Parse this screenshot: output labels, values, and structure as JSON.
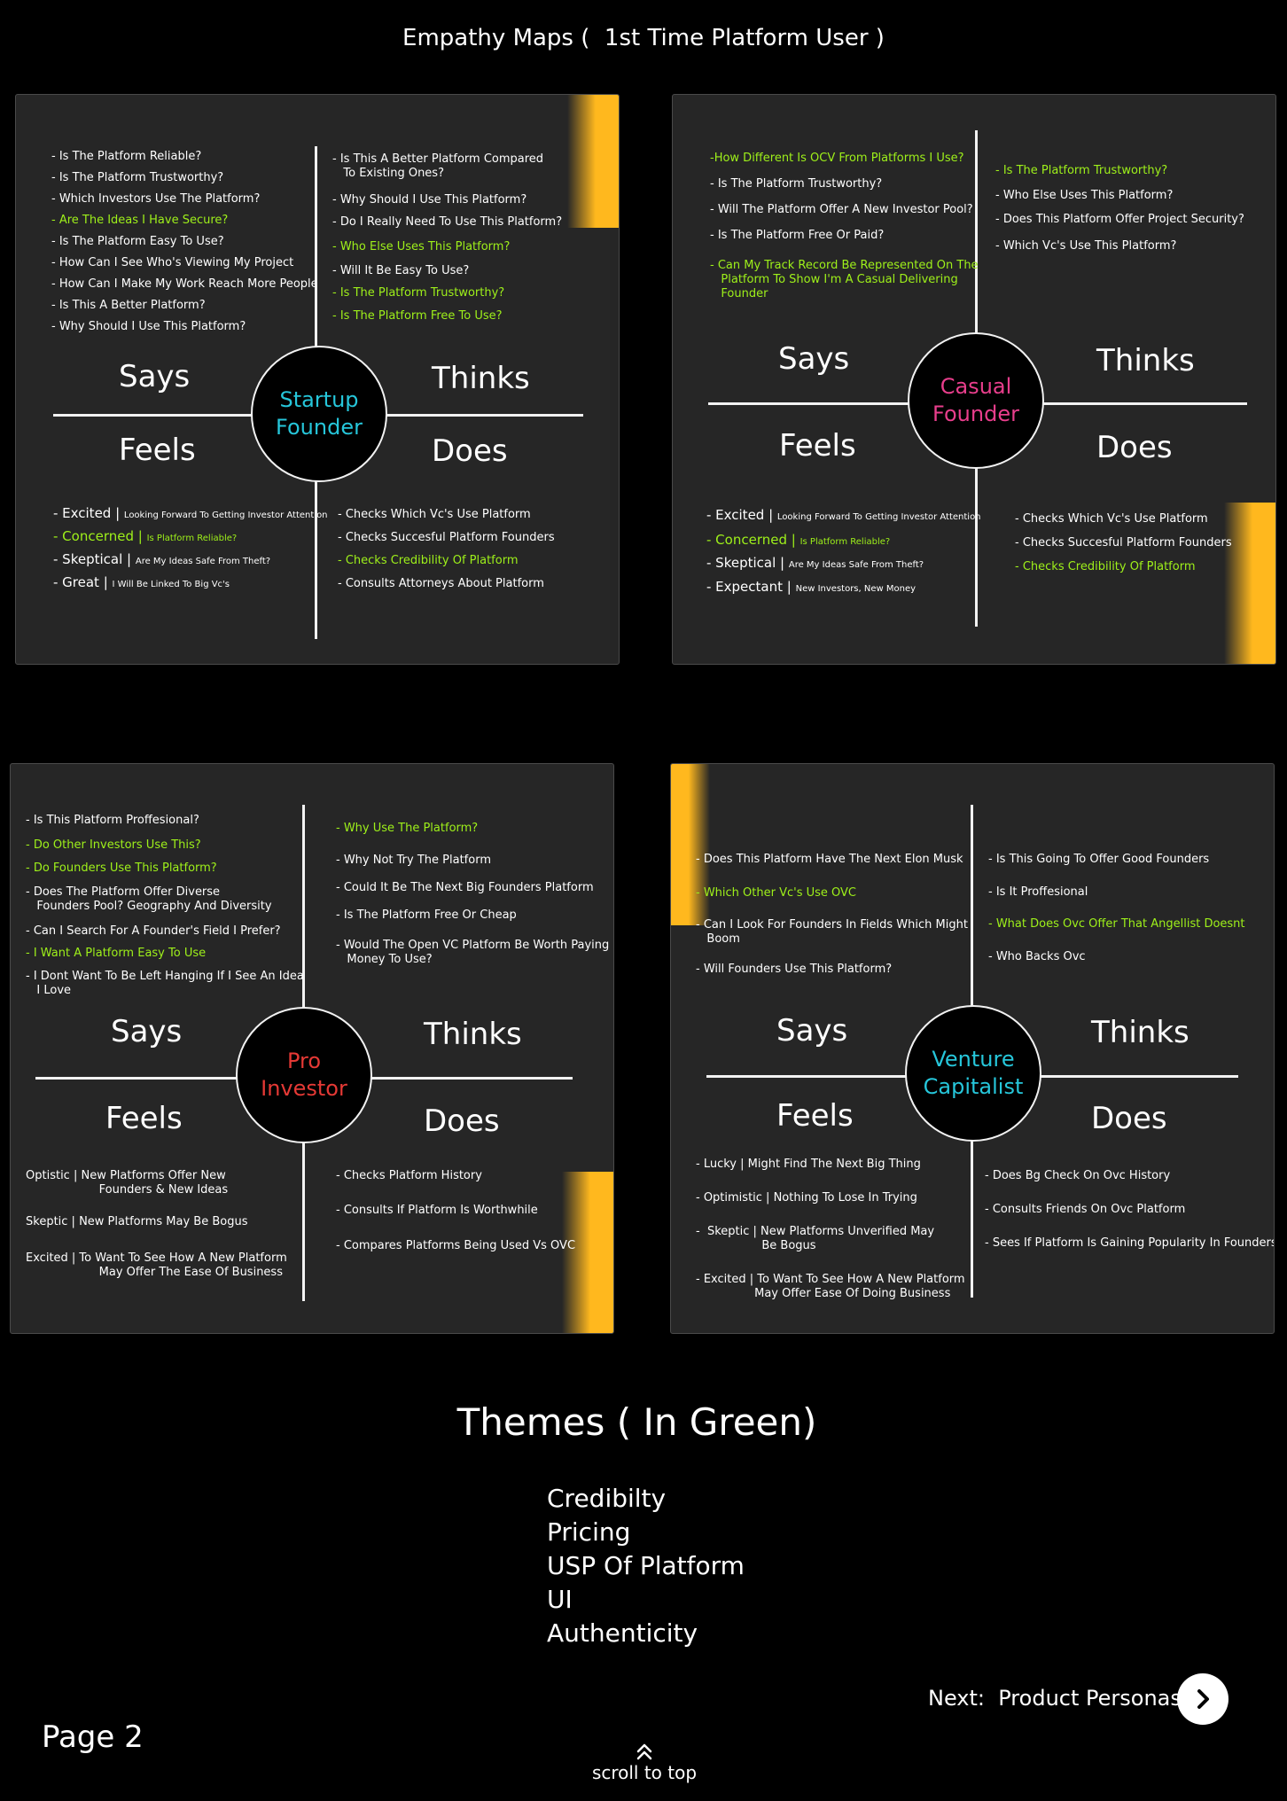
{
  "page_title": "Empathy Maps (  1st Time Platform User )",
  "colors": {
    "green": "#9ef01a",
    "accent": "#ffb81e",
    "cyan": "#26c6da",
    "pink": "#e83e8c",
    "red": "#e53935",
    "panel": "#262626"
  },
  "maps": [
    {
      "center": [
        "Startup",
        "Founder"
      ],
      "center_color": "#26c6da",
      "quadrants": {
        "says": "Says",
        "thinks": "Thinks",
        "feels": "Feels",
        "does": "Does"
      },
      "says": [
        {
          "text": "- Is The Platform Reliable?",
          "green": false
        },
        {
          "text": "- Is The Platform Trustworthy?",
          "green": false
        },
        {
          "text": "- Which Investors Use The Platform?",
          "green": false
        },
        {
          "text": "- Are The Ideas I Have Secure?",
          "green": true
        },
        {
          "text": "- Is The Platform Easy To Use?",
          "green": false
        },
        {
          "text": "- How Can I See Who's Viewing My Project",
          "green": false
        },
        {
          "text": "- How Can I Make My Work Reach More People",
          "green": false
        },
        {
          "text": "- Is This A Better Platform?",
          "green": false
        },
        {
          "text": "- Why Should I Use This Platform?",
          "green": false
        }
      ],
      "thinks": [
        {
          "text": "- Is This A Better Platform Compared\n   To Existing Ones?",
          "green": false
        },
        {
          "text": "- Why Should I Use This Platform?",
          "green": false
        },
        {
          "text": "- Do I Really Need To Use This Platform?",
          "green": false
        },
        {
          "text": "- Who Else Uses This Platform?",
          "green": true
        },
        {
          "text": "- Will It Be Easy To Use?",
          "green": false
        },
        {
          "text": "- Is The Platform Trustworthy?",
          "green": true
        },
        {
          "text": "- Is The Platform Free To Use?",
          "green": true
        }
      ],
      "feels": [
        {
          "text": "- Excited | ",
          "detail": "Looking Forward To Getting Investor Attention",
          "green": false
        },
        {
          "text": "- Concerned | ",
          "detail": "Is Platform Reliable?",
          "green": true
        },
        {
          "text": "- Skeptical | ",
          "detail": "Are My Ideas Safe From Theft?",
          "green": false
        },
        {
          "text": "- Great | ",
          "detail": "I Will Be Linked To Big Vc's",
          "green": false
        }
      ],
      "does": [
        {
          "text": "- Checks Which Vc's Use Platform",
          "green": false
        },
        {
          "text": "- Checks Succesful Platform Founders",
          "green": false
        },
        {
          "text": "- Checks Credibility Of Platform",
          "green": true
        },
        {
          "text": "- Consults Attorneys About Platform",
          "green": false
        }
      ]
    },
    {
      "center": [
        "Casual",
        "Founder"
      ],
      "center_color": "#e83e8c",
      "quadrants": {
        "says": "Says",
        "thinks": "Thinks",
        "feels": "Feels",
        "does": "Does"
      },
      "says": [
        {
          "text": "-How Different Is OCV From Platforms I Use?",
          "green": true
        },
        {
          "text": "- Is The Platform Trustworthy?",
          "green": false
        },
        {
          "text": "- Will The Platform Offer A New Investor Pool?",
          "green": false
        },
        {
          "text": "- Is The Platform Free Or Paid?",
          "green": false
        },
        {
          "text": "- Can My Track Record Be Represented On The\n   Platform To Show I'm A Casual Delivering\n   Founder",
          "green": true
        }
      ],
      "thinks": [
        {
          "text": "- Is The Platform Trustworthy?",
          "green": true
        },
        {
          "text": "- Who Else Uses This Platform?",
          "green": false
        },
        {
          "text": "- Does This Platform Offer Project Security?",
          "green": false
        },
        {
          "text": "- Which Vc's Use This Platform?",
          "green": false
        }
      ],
      "feels": [
        {
          "text": "- Excited | ",
          "detail": "Looking Forward To Getting Investor Attention",
          "green": false
        },
        {
          "text": "- Concerned | ",
          "detail": "Is Platform Reliable?",
          "green": true
        },
        {
          "text": "- Skeptical | ",
          "detail": "Are My Ideas Safe From Theft?",
          "green": false
        },
        {
          "text": "- Expectant | ",
          "detail": "New Investors, New Money",
          "green": false
        }
      ],
      "does": [
        {
          "text": "- Checks Which Vc's Use Platform",
          "green": false
        },
        {
          "text": "- Checks Succesful Platform Founders",
          "green": false
        },
        {
          "text": "- Checks Credibility Of Platform",
          "green": true
        }
      ]
    },
    {
      "center": [
        "Pro",
        "Investor"
      ],
      "center_color": "#e53935",
      "quadrants": {
        "says": "Says",
        "thinks": "Thinks",
        "feels": "Feels",
        "does": "Does"
      },
      "says": [
        {
          "text": "- Is This Platform Proffesional?",
          "green": false
        },
        {
          "text": "- Do Other Investors Use This?",
          "green": true
        },
        {
          "text": "- Do Founders Use This Platform?",
          "green": true
        },
        {
          "text": "- Does The Platform Offer Diverse\n   Founders Pool? Geography And Diversity",
          "green": false
        },
        {
          "text": "- Can I Search For A Founder's Field I Prefer?",
          "green": false
        },
        {
          "text": "- I Want A Platform Easy To Use",
          "green": true
        },
        {
          "text": "- I Dont Want To Be Left Hanging If I See An Idea\n   I Love",
          "green": false
        }
      ],
      "thinks": [
        {
          "text": "- Why Use The Platform?",
          "green": true
        },
        {
          "text": "- Why Not Try The Platform",
          "green": false
        },
        {
          "text": "- Could It Be The Next Big Founders Platform",
          "green": false
        },
        {
          "text": "- Is The Platform Free Or Cheap",
          "green": false
        },
        {
          "text": "- Would The Open VC Platform Be Worth Paying\n   Money To Use?",
          "green": false
        }
      ],
      "feels": [
        {
          "text": "Optistic | New Platforms Offer New\n                    Founders & New Ideas",
          "green": false
        },
        {
          "text": "Skeptic | New Platforms May Be Bogus",
          "green": false
        },
        {
          "text": "Excited | To Want To See How A New Platform\n                    May Offer The Ease Of Business",
          "green": false
        }
      ],
      "does": [
        {
          "text": "- Checks Platform History",
          "green": false
        },
        {
          "text": "- Consults If Platform Is Worthwhile",
          "green": false
        },
        {
          "text": "- Compares Platforms Being Used Vs OVC",
          "green": false
        }
      ]
    },
    {
      "center": [
        "Venture",
        "Capitalist"
      ],
      "center_color": "#26c6da",
      "quadrants": {
        "says": "Says",
        "thinks": "Thinks",
        "feels": "Feels",
        "does": "Does"
      },
      "says": [
        {
          "text": "- Does This Platform Have The Next Elon Musk",
          "green": false
        },
        {
          "text": "- Which Other Vc's Use OVC",
          "green": true
        },
        {
          "text": "- Can I Look For Founders In Fields Which Might\n   Boom",
          "green": false
        },
        {
          "text": "- Will Founders Use This Platform?",
          "green": false
        }
      ],
      "thinks": [
        {
          "text": "- Is This Going To Offer Good Founders",
          "green": false
        },
        {
          "text": "- Is It Proffesional",
          "green": false
        },
        {
          "text": "- What Does Ovc Offer That Angellist Doesnt",
          "green": true
        },
        {
          "text": "- Who Backs Ovc",
          "green": false
        }
      ],
      "feels": [
        {
          "text": "- Lucky | Might Find The Next Big Thing",
          "green": false
        },
        {
          "text": "- Optimistic | Nothing To Lose In Trying",
          "green": false
        },
        {
          "text": "-  Skeptic | New Platforms Unverified May\n                  Be Bogus",
          "green": false
        },
        {
          "text": "- Excited | To Want To See How A New Platform\n                May Offer Ease Of Doing Business",
          "green": false
        }
      ],
      "does": [
        {
          "text": "- Does Bg Check On Ovc History",
          "green": false
        },
        {
          "text": "- Consults Friends On Ovc Platform",
          "green": false
        },
        {
          "text": "- Sees If Platform Is Gaining Popularity In Founders",
          "green": false
        }
      ]
    }
  ],
  "themes": {
    "title": "Themes ( In Green)",
    "items": [
      "Credibilty",
      "Pricing",
      "USP Of Platform",
      "UI",
      "Authenticity"
    ]
  },
  "nav": {
    "next_label": "Next:  Product Personas",
    "next_icon": "chevron-right-icon",
    "page_label": "Page 2",
    "scroll_label": "scroll to top",
    "scroll_icon": "double-chevron-up-icon"
  }
}
